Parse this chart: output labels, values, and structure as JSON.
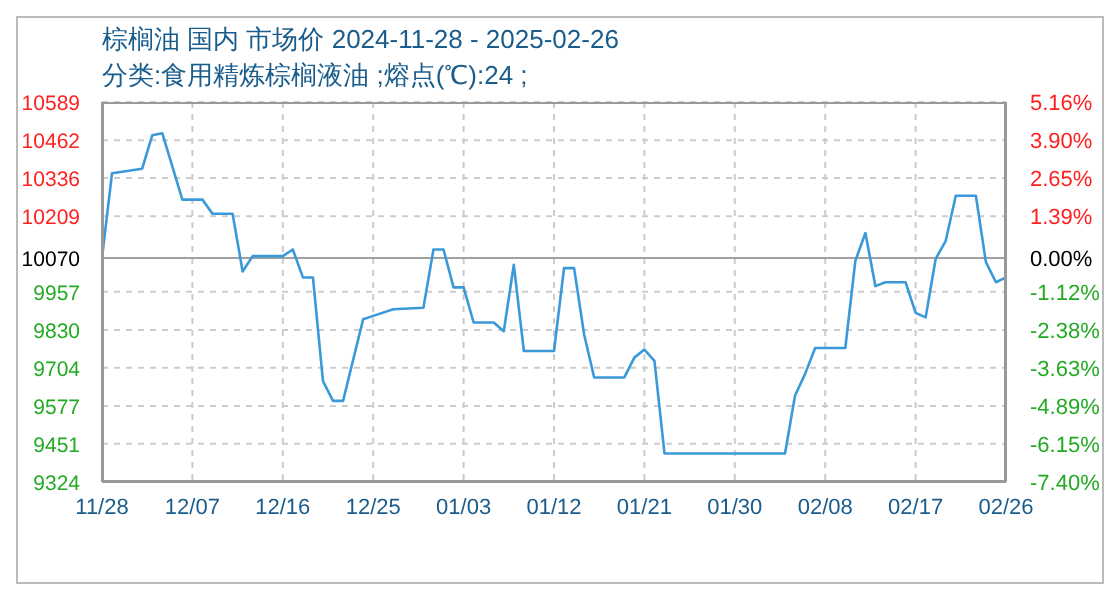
{
  "chart_data": {
    "type": "line",
    "title": "棕榈油 国内 市场价 2024-11-28 - 2025-02-26",
    "subtitle": "分类:食用精炼棕榈液油 ;熔点(℃):24 ;",
    "x": [
      "2024-11-28",
      "2024-11-29",
      "2024-12-02",
      "2024-12-03",
      "2024-12-04",
      "2024-12-06",
      "2024-12-08",
      "2024-12-09",
      "2024-12-11",
      "2024-12-12",
      "2024-12-13",
      "2024-12-16",
      "2024-12-17",
      "2024-12-18",
      "2024-12-19",
      "2024-12-20",
      "2024-12-21",
      "2024-12-22",
      "2024-12-24",
      "2024-12-25",
      "2024-12-27",
      "2024-12-30",
      "2024-12-31",
      "2025-01-01",
      "2025-01-02",
      "2025-01-03",
      "2025-01-04",
      "2025-01-06",
      "2025-01-07",
      "2025-01-08",
      "2025-01-09",
      "2025-01-12",
      "2025-01-13",
      "2025-01-14",
      "2025-01-15",
      "2025-01-16",
      "2025-01-19",
      "2025-01-20",
      "2025-01-21",
      "2025-01-22",
      "2025-01-23",
      "2025-02-04",
      "2025-02-05",
      "2025-02-06",
      "2025-02-07",
      "2025-02-10",
      "2025-02-11",
      "2025-02-12",
      "2025-02-13",
      "2025-02-14",
      "2025-02-16",
      "2025-02-17",
      "2025-02-18",
      "2025-02-19",
      "2025-02-20",
      "2025-02-21",
      "2025-02-23",
      "2025-02-24",
      "2025-02-25",
      "2025-02-26"
    ],
    "series": [
      {
        "color": "#3a9ad9",
        "values": [
          10070,
          10352,
          10367,
          10478,
          10485,
          10264,
          10264,
          10217,
          10217,
          10025,
          10076,
          10076,
          10098,
          10005,
          10005,
          9660,
          9594,
          9594,
          9866,
          9877,
          9899,
          9904,
          10098,
          10098,
          9972,
          9972,
          9855,
          9855,
          9826,
          10047,
          9760,
          9760,
          10036,
          10036,
          9815,
          9672,
          9672,
          9738,
          9765,
          9727,
          9419,
          9419,
          9612,
          9684,
          9770,
          9770,
          10060,
          10153,
          9976,
          9989,
          9989,
          9887,
          9872,
          10067,
          10127,
          10277,
          10277,
          10056,
          9989,
          10005
        ]
      }
    ],
    "xlim": [
      "2024-11-28",
      "2025-02-26"
    ],
    "xticks": [
      {
        "value": "2024-11-28",
        "label": "11/28"
      },
      {
        "value": "2024-12-07",
        "label": "12/07"
      },
      {
        "value": "2024-12-16",
        "label": "12/16"
      },
      {
        "value": "2024-12-25",
        "label": "12/25"
      },
      {
        "value": "2025-01-03",
        "label": "01/03"
      },
      {
        "value": "2025-01-12",
        "label": "01/12"
      },
      {
        "value": "2025-01-21",
        "label": "01/21"
      },
      {
        "value": "2025-01-30",
        "label": "01/30"
      },
      {
        "value": "2025-02-08",
        "label": "02/08"
      },
      {
        "value": "2025-02-17",
        "label": "02/17"
      },
      {
        "value": "2025-02-26",
        "label": "02/26"
      }
    ],
    "ylim": [
      9324,
      10589
    ],
    "yticks": [
      9324,
      9451,
      9577,
      9704,
      9830,
      9957,
      10070,
      10209,
      10336,
      10462,
      10589
    ],
    "y2lim": [
      -7.4,
      5.16
    ],
    "y2ticks": [
      {
        "value": -7.4,
        "label": "-7.40%"
      },
      {
        "value": -6.15,
        "label": "-6.15%"
      },
      {
        "value": -4.89,
        "label": "-4.89%"
      },
      {
        "value": -3.63,
        "label": "-3.63%"
      },
      {
        "value": -2.38,
        "label": "-2.38%"
      },
      {
        "value": -1.12,
        "label": "-1.12%"
      },
      {
        "value": 0,
        "label": "0.00%"
      },
      {
        "value": 1.39,
        "label": "1.39%"
      },
      {
        "value": 2.65,
        "label": "2.65%"
      },
      {
        "value": 3.9,
        "label": "3.90%"
      },
      {
        "value": 5.16,
        "label": "5.16%"
      }
    ],
    "ref_lines": [
      {
        "axis": "y",
        "value": 10070,
        "color": "#a0a0a0",
        "line_style": "solid"
      }
    ],
    "grid": true,
    "marker": "none",
    "line_style": "solid"
  }
}
